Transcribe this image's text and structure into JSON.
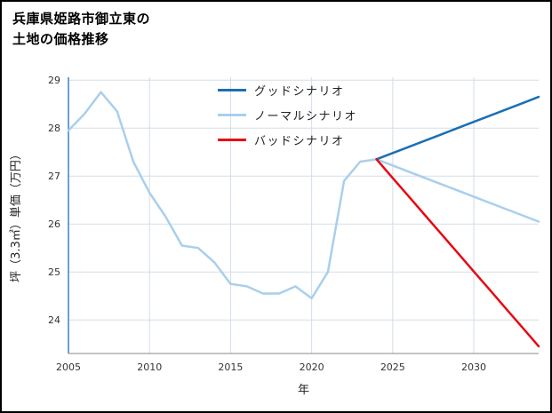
{
  "header": {
    "title_line1": "兵庫県姫路市御立東の",
    "title_line2": "土地の価格推移"
  },
  "chart_data": {
    "type": "line",
    "title": "兵庫県姫路市御立東の土地の価格推移",
    "xlabel": "年",
    "ylabel": "坪（3.3㎡）単価（万円）",
    "xlim": [
      2005,
      2034
    ],
    "ylim": [
      23.3,
      29.06
    ],
    "xticks": [
      2005,
      2010,
      2015,
      2020,
      2025,
      2030
    ],
    "yticks": [
      24,
      25,
      26,
      27,
      28,
      29
    ],
    "grid": true,
    "grid_color": "#d3dde9",
    "axis_color_y": "#3c82c3",
    "axis_color_x": "#8a8a8a",
    "legend_position": "upper center",
    "series": [
      {
        "name": "グッドシナリオ",
        "color": "#1b6fb5",
        "x": [
          2024,
          2025,
          2026,
          2027,
          2028,
          2029,
          2030,
          2031,
          2032,
          2033,
          2034
        ],
        "y": [
          27.35,
          27.48,
          27.61,
          27.74,
          27.87,
          28.0,
          28.13,
          28.26,
          28.39,
          28.52,
          28.65
        ]
      },
      {
        "name": "ノーマルシナリオ",
        "color": "#a9cfec",
        "x": [
          2005,
          2006,
          2007,
          2008,
          2009,
          2010,
          2011,
          2012,
          2013,
          2014,
          2015,
          2016,
          2017,
          2018,
          2019,
          2020,
          2021,
          2022,
          2023,
          2024,
          2025,
          2026,
          2027,
          2028,
          2029,
          2030,
          2031,
          2032,
          2033,
          2034
        ],
        "y": [
          27.95,
          28.3,
          28.75,
          28.35,
          27.3,
          26.65,
          26.15,
          25.55,
          25.5,
          25.2,
          24.75,
          24.7,
          24.55,
          24.55,
          24.7,
          24.45,
          25.0,
          26.9,
          27.3,
          27.35,
          27.22,
          27.09,
          26.96,
          26.83,
          26.7,
          26.57,
          26.44,
          26.31,
          26.18,
          26.05
        ]
      },
      {
        "name": "バッドシナリオ",
        "color": "#e60914",
        "x": [
          2024,
          2025,
          2026,
          2027,
          2028,
          2029,
          2030,
          2031,
          2032,
          2033,
          2034
        ],
        "y": [
          27.35,
          26.96,
          26.57,
          26.18,
          25.79,
          25.4,
          25.01,
          24.62,
          24.23,
          23.84,
          23.45
        ]
      }
    ]
  }
}
